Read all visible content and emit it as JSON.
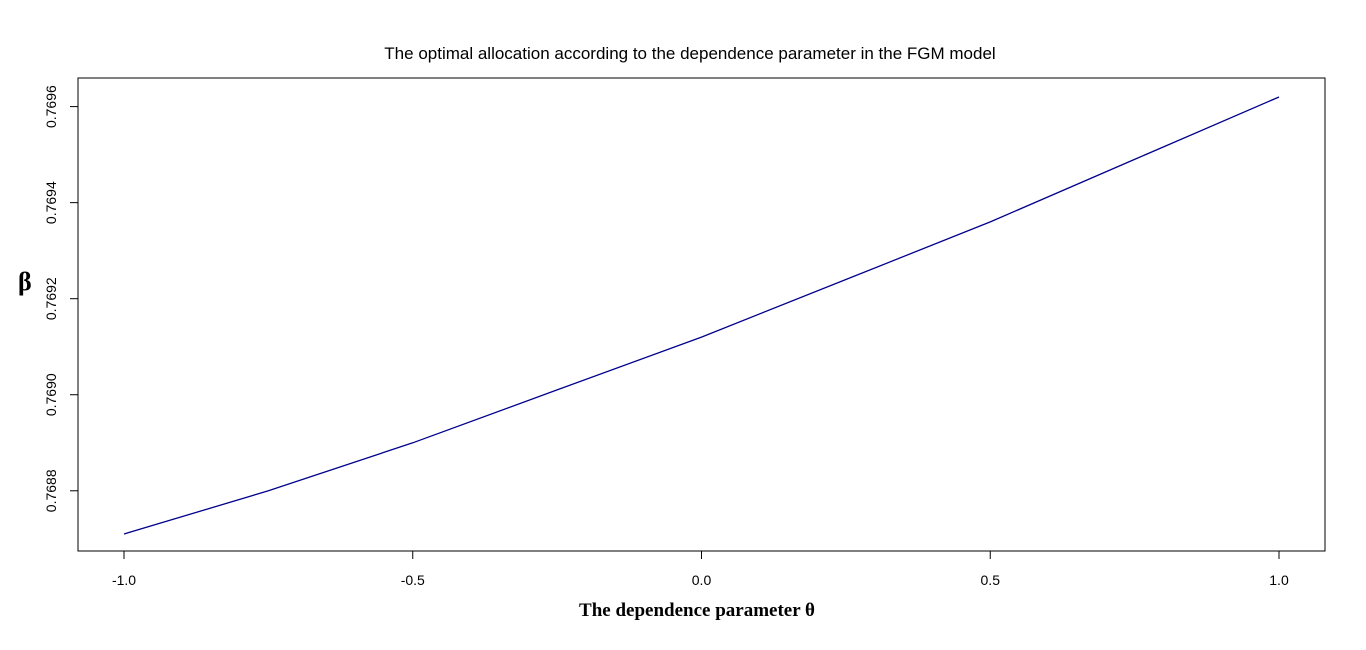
{
  "chart_data": {
    "type": "line",
    "title": "The optimal allocation according to the dependence parameter in the FGM model",
    "xlabel": "The dependence parameter θ",
    "ylabel": "β",
    "xlim": [
      -1.0,
      1.0
    ],
    "ylim": [
      0.76871,
      0.76962
    ],
    "x_ticks": [
      -1.0,
      -0.5,
      0.0,
      0.5,
      1.0
    ],
    "x_tick_labels": [
      "-1.0",
      "-0.5",
      "0.0",
      "0.5",
      "1.0"
    ],
    "y_ticks": [
      0.7688,
      0.769,
      0.7692,
      0.7694,
      0.7696
    ],
    "y_tick_labels": [
      "0.7688",
      "0.7690",
      "0.7692",
      "0.7694",
      "0.7696"
    ],
    "grid": false,
    "series": [
      {
        "color": "#00008B",
        "x": [
          -1.0,
          -0.75,
          -0.5,
          -0.25,
          0.0,
          0.25,
          0.5,
          0.75,
          1.0
        ],
        "y": [
          0.76871,
          0.7688,
          0.7689,
          0.76901,
          0.76912,
          0.76924,
          0.76936,
          0.76949,
          0.76962
        ]
      }
    ]
  }
}
